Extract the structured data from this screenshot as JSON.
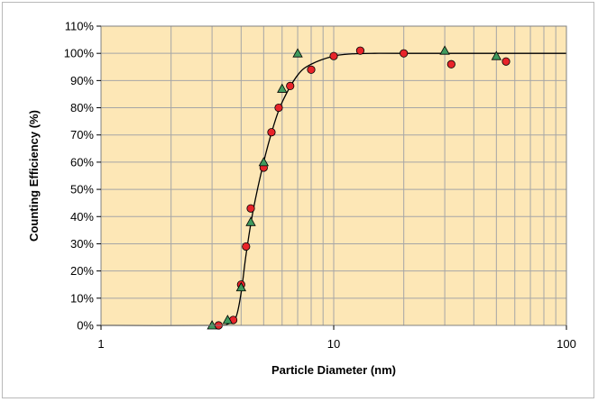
{
  "chart_data": {
    "type": "scatter",
    "title": "",
    "xlabel": "Particle Diameter (nm)",
    "ylabel": "Counting Efficiency (%)",
    "x_scale": "log",
    "xlim": [
      1,
      100
    ],
    "ylim": [
      0,
      110
    ],
    "x_ticks": [
      1,
      10,
      100
    ],
    "x_tick_labels": [
      "1",
      "10",
      "100"
    ],
    "y_ticks": [
      0,
      10,
      20,
      30,
      40,
      50,
      60,
      70,
      80,
      90,
      100,
      110
    ],
    "y_tick_labels": [
      "0%",
      "10%",
      "20%",
      "30%",
      "40%",
      "50%",
      "60%",
      "70%",
      "80%",
      "90%",
      "100%",
      "110%"
    ],
    "grid": true,
    "legend": "none",
    "plot_background": "#fde7b6",
    "series": [
      {
        "marker": "circle",
        "color": "#e8242a",
        "x": [
          3.2,
          3.7,
          4.0,
          4.2,
          4.4,
          5.0,
          5.4,
          5.8,
          6.5,
          8.0,
          10.0,
          13.0,
          20.0,
          32.0,
          55.0
        ],
        "y": [
          0,
          2,
          15,
          29,
          43,
          58,
          71,
          80,
          88,
          94,
          99,
          101,
          100,
          96,
          97
        ]
      },
      {
        "marker": "triangle",
        "color": "#3f9a5e",
        "x": [
          3.0,
          3.5,
          4.0,
          4.4,
          5.0,
          6.0,
          7.0,
          30.0,
          50.0
        ],
        "y": [
          0,
          2,
          14,
          38,
          60,
          87,
          100,
          101,
          99
        ]
      },
      {
        "type": "line",
        "color": "#000000",
        "x": [
          1.0,
          3.0,
          3.5,
          3.8,
          4.0,
          4.2,
          4.5,
          5.0,
          5.5,
          6.0,
          7.0,
          8.0,
          10.0,
          12.0,
          15.0,
          20.0,
          100.0
        ],
        "y": [
          0,
          0,
          0.5,
          3,
          12,
          26,
          42,
          60,
          73,
          82,
          92,
          96,
          99,
          99.8,
          100,
          100,
          100
        ]
      }
    ]
  }
}
